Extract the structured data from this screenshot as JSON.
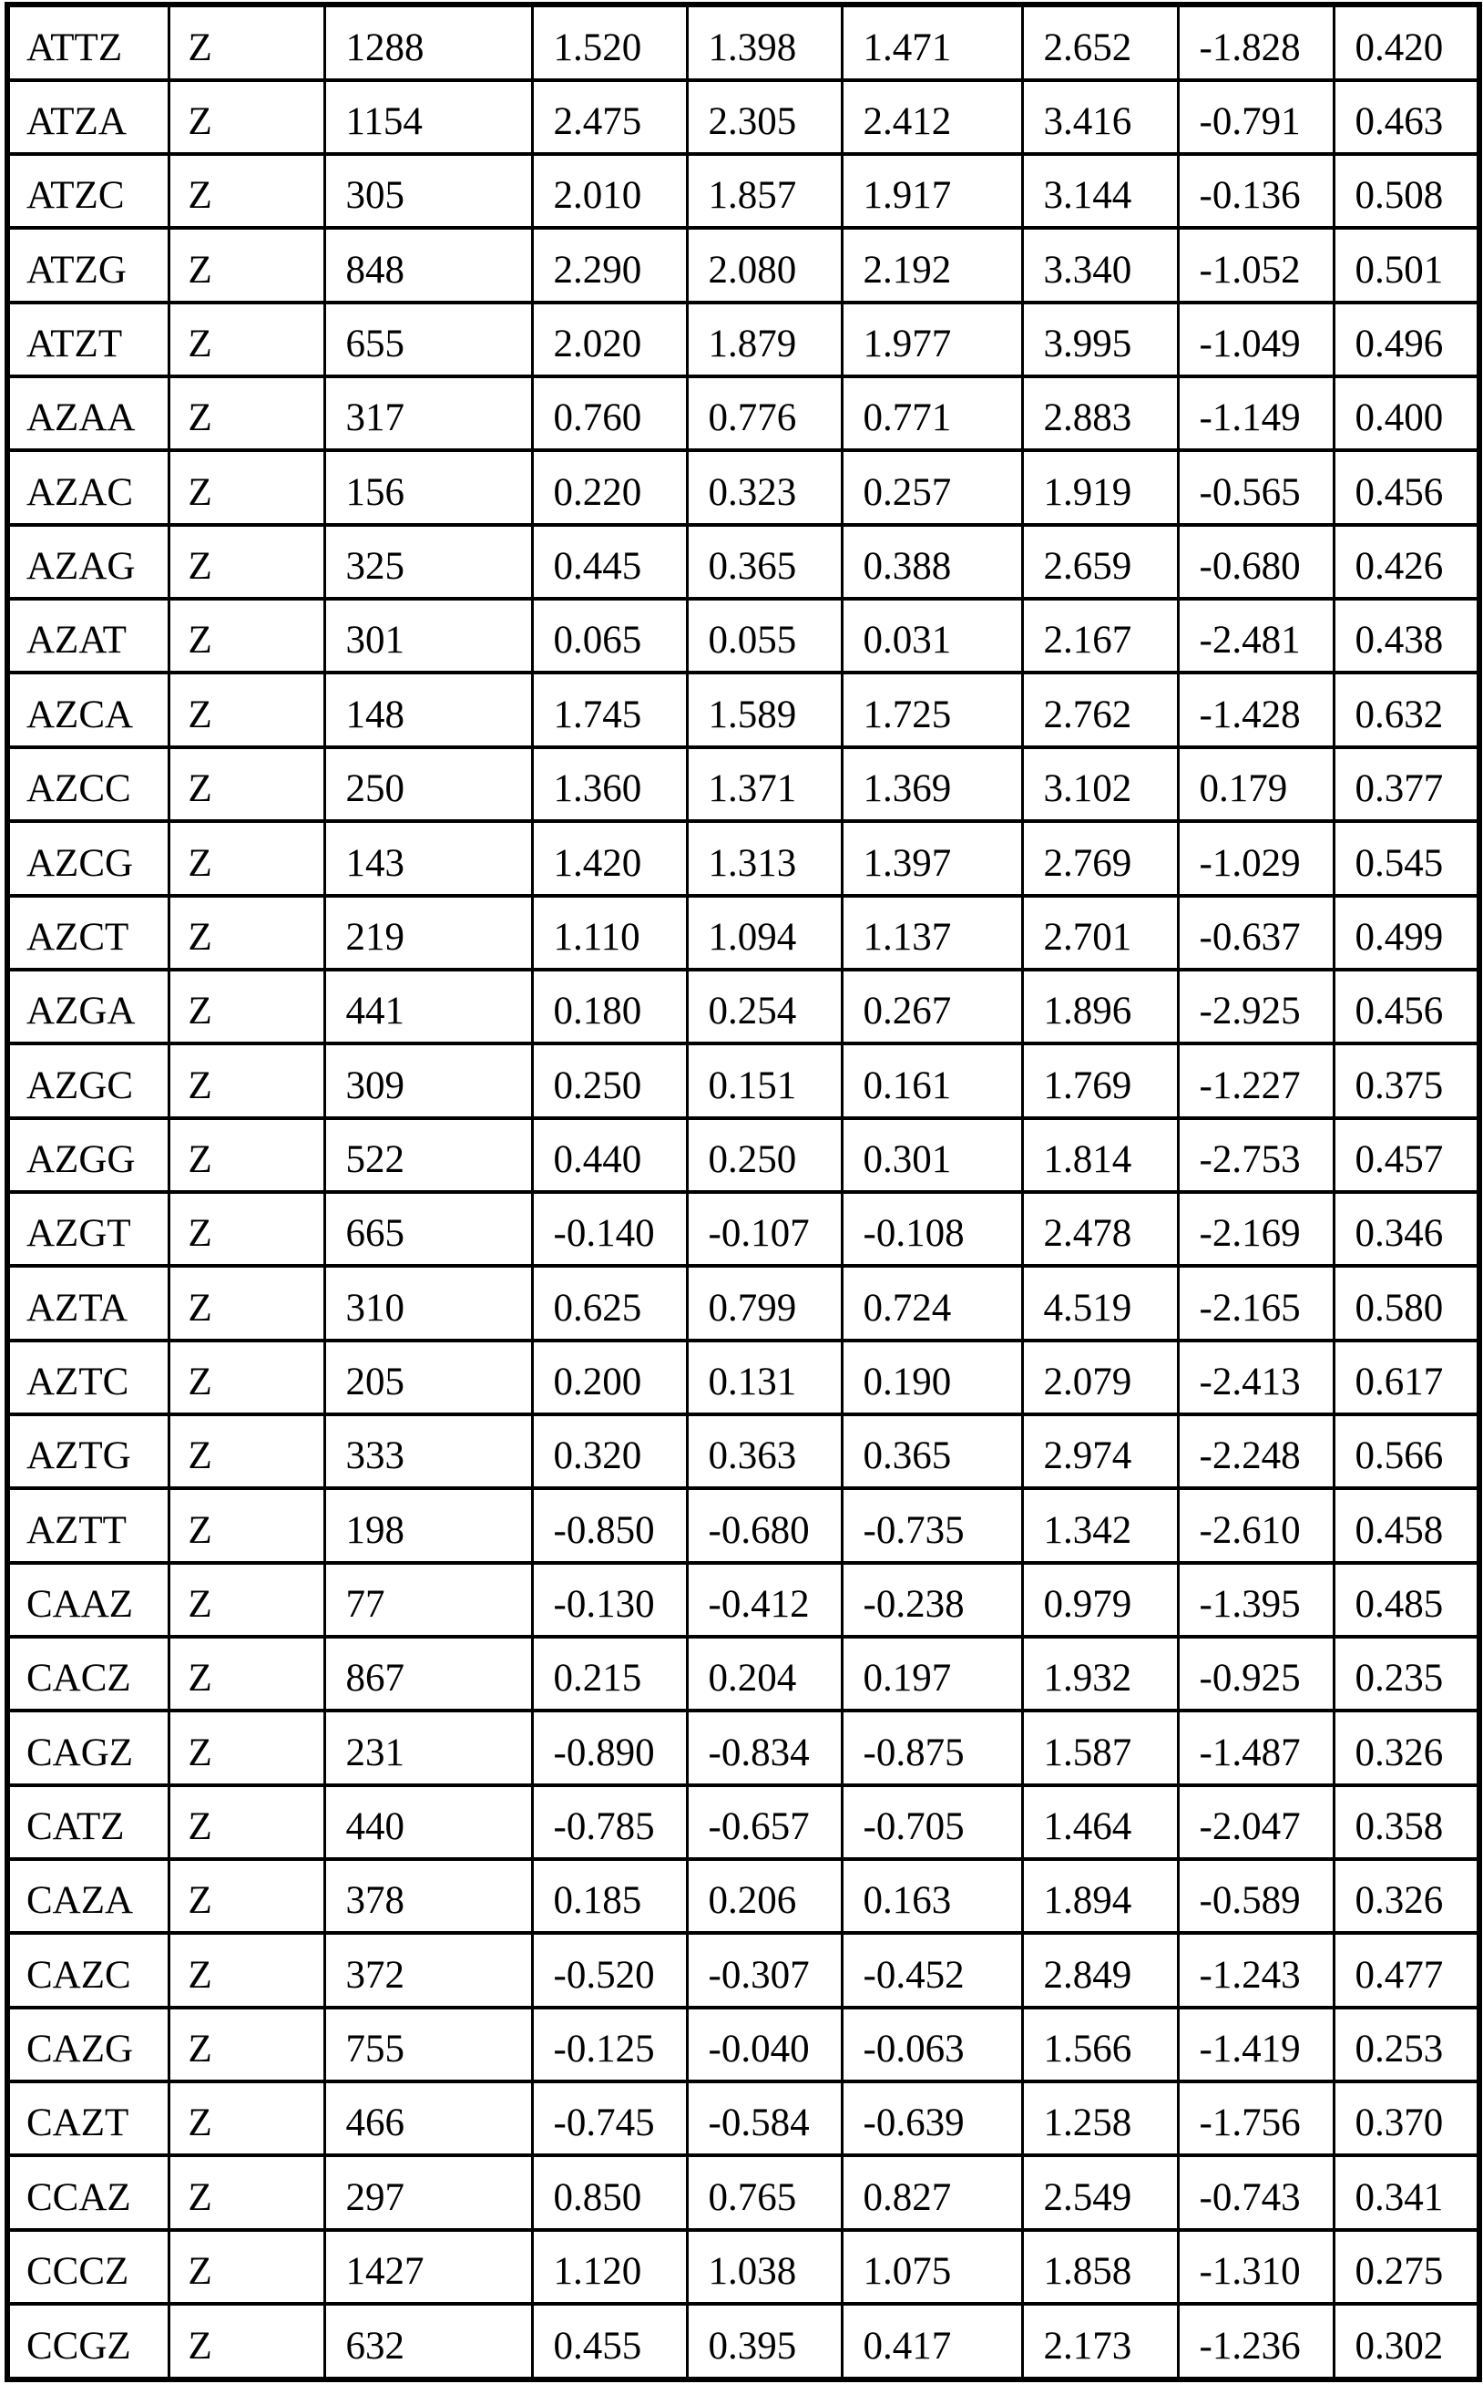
{
  "table": {
    "rows": [
      [
        "ATTZ",
        "Z",
        "1288",
        "1.520",
        "1.398",
        "1.471",
        "2.652",
        "-1.828",
        "0.420"
      ],
      [
        "ATZA",
        "Z",
        "1154",
        "2.475",
        "2.305",
        "2.412",
        "3.416",
        "-0.791",
        "0.463"
      ],
      [
        "ATZC",
        "Z",
        "305",
        "2.010",
        "1.857",
        "1.917",
        "3.144",
        "-0.136",
        "0.508"
      ],
      [
        "ATZG",
        "Z",
        "848",
        "2.290",
        "2.080",
        "2.192",
        "3.340",
        "-1.052",
        "0.501"
      ],
      [
        "ATZT",
        "Z",
        "655",
        "2.020",
        "1.879",
        "1.977",
        "3.995",
        "-1.049",
        "0.496"
      ],
      [
        "AZAA",
        "Z",
        "317",
        "0.760",
        "0.776",
        "0.771",
        "2.883",
        "-1.149",
        "0.400"
      ],
      [
        "AZAC",
        "Z",
        "156",
        "0.220",
        "0.323",
        "0.257",
        "1.919",
        "-0.565",
        "0.456"
      ],
      [
        "AZAG",
        "Z",
        "325",
        "0.445",
        "0.365",
        "0.388",
        "2.659",
        "-0.680",
        "0.426"
      ],
      [
        "AZAT",
        "Z",
        "301",
        "0.065",
        "0.055",
        "0.031",
        "2.167",
        "-2.481",
        "0.438"
      ],
      [
        "AZCA",
        "Z",
        "148",
        "1.745",
        "1.589",
        "1.725",
        "2.762",
        "-1.428",
        "0.632"
      ],
      [
        "AZCC",
        "Z",
        "250",
        "1.360",
        "1.371",
        "1.369",
        "3.102",
        "0.179",
        "0.377"
      ],
      [
        "AZCG",
        "Z",
        "143",
        "1.420",
        "1.313",
        "1.397",
        "2.769",
        "-1.029",
        "0.545"
      ],
      [
        "AZCT",
        "Z",
        "219",
        "1.110",
        "1.094",
        "1.137",
        "2.701",
        "-0.637",
        "0.499"
      ],
      [
        "AZGA",
        "Z",
        "441",
        "0.180",
        "0.254",
        "0.267",
        "1.896",
        "-2.925",
        "0.456"
      ],
      [
        "AZGC",
        "Z",
        "309",
        "0.250",
        "0.151",
        "0.161",
        "1.769",
        "-1.227",
        "0.375"
      ],
      [
        "AZGG",
        "Z",
        "522",
        "0.440",
        "0.250",
        "0.301",
        "1.814",
        "-2.753",
        "0.457"
      ],
      [
        "AZGT",
        "Z",
        "665",
        "-0.140",
        "-0.107",
        "-0.108",
        "2.478",
        "-2.169",
        "0.346"
      ],
      [
        "AZTA",
        "Z",
        "310",
        "0.625",
        "0.799",
        "0.724",
        "4.519",
        "-2.165",
        "0.580"
      ],
      [
        "AZTC",
        "Z",
        "205",
        "0.200",
        "0.131",
        "0.190",
        "2.079",
        "-2.413",
        "0.617"
      ],
      [
        "AZTG",
        "Z",
        "333",
        "0.320",
        "0.363",
        "0.365",
        "2.974",
        "-2.248",
        "0.566"
      ],
      [
        "AZTT",
        "Z",
        "198",
        "-0.850",
        "-0.680",
        "-0.735",
        "1.342",
        "-2.610",
        "0.458"
      ],
      [
        "CAAZ",
        "Z",
        "77",
        "-0.130",
        "-0.412",
        "-0.238",
        "0.979",
        "-1.395",
        "0.485"
      ],
      [
        "CACZ",
        "Z",
        "867",
        "0.215",
        "0.204",
        "0.197",
        "1.932",
        "-0.925",
        "0.235"
      ],
      [
        "CAGZ",
        "Z",
        "231",
        "-0.890",
        "-0.834",
        "-0.875",
        "1.587",
        "-1.487",
        "0.326"
      ],
      [
        "CATZ",
        "Z",
        "440",
        "-0.785",
        "-0.657",
        "-0.705",
        "1.464",
        "-2.047",
        "0.358"
      ],
      [
        "CAZA",
        "Z",
        "378",
        "0.185",
        "0.206",
        "0.163",
        "1.894",
        "-0.589",
        "0.326"
      ],
      [
        "CAZC",
        "Z",
        "372",
        "-0.520",
        "-0.307",
        "-0.452",
        "2.849",
        "-1.243",
        "0.477"
      ],
      [
        "CAZG",
        "Z",
        "755",
        "-0.125",
        "-0.040",
        "-0.063",
        "1.566",
        "-1.419",
        "0.253"
      ],
      [
        "CAZT",
        "Z",
        "466",
        "-0.745",
        "-0.584",
        "-0.639",
        "1.258",
        "-1.756",
        "0.370"
      ],
      [
        "CCAZ",
        "Z",
        "297",
        "0.850",
        "0.765",
        "0.827",
        "2.549",
        "-0.743",
        "0.341"
      ],
      [
        "CCCZ",
        "Z",
        "1427",
        "1.120",
        "1.038",
        "1.075",
        "1.858",
        "-1.310",
        "0.275"
      ],
      [
        "CCGZ",
        "Z",
        "632",
        "0.455",
        "0.395",
        "0.417",
        "2.173",
        "-1.236",
        "0.302"
      ]
    ]
  }
}
